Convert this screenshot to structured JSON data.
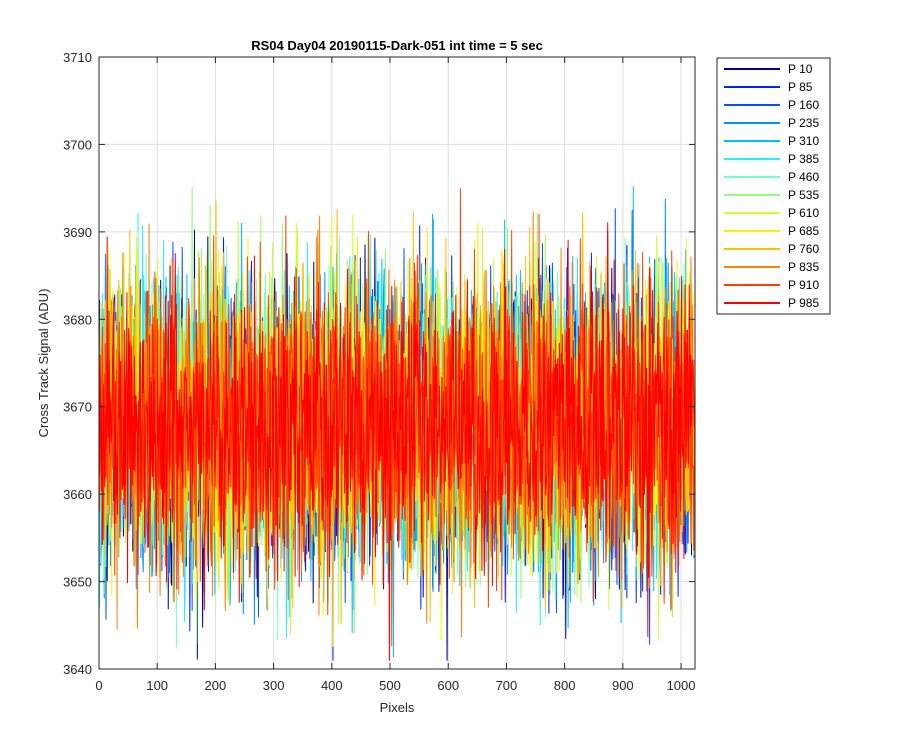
{
  "chart_data": {
    "type": "line",
    "title": "RS04 Day04 20190115-Dark-051 int time = 5 sec",
    "xlabel": "Pixels",
    "ylabel": "Cross Track Signal (ADU)",
    "xlim": [
      0,
      1024
    ],
    "ylim": [
      3640,
      3710
    ],
    "xticks": [
      0,
      100,
      200,
      300,
      400,
      500,
      600,
      700,
      800,
      900,
      1000
    ],
    "yticks": [
      3640,
      3650,
      3660,
      3670,
      3680,
      3690,
      3700,
      3710
    ],
    "grid": true,
    "legend_position": "outside-top-right",
    "noise_model": {
      "mean": 3668,
      "stddev_approx": 8,
      "n_points_per_series": 1024
    },
    "series": [
      {
        "name": "P 10",
        "color": "#00008f",
        "mean": 3668
      },
      {
        "name": "P 85",
        "color": "#0020ff",
        "mean": 3668
      },
      {
        "name": "P 160",
        "color": "#0050ff",
        "mean": 3668
      },
      {
        "name": "P 235",
        "color": "#0090ff",
        "mean": 3668
      },
      {
        "name": "P 310",
        "color": "#00bfff",
        "mean": 3668
      },
      {
        "name": "P 385",
        "color": "#20efff",
        "mean": 3668
      },
      {
        "name": "P 460",
        "color": "#70ffcf",
        "mean": 3668
      },
      {
        "name": "P 535",
        "color": "#8fff70",
        "mean": 3668
      },
      {
        "name": "P 610",
        "color": "#cfff30",
        "mean": 3668
      },
      {
        "name": "P 685",
        "color": "#ffef00",
        "mean": 3668
      },
      {
        "name": "P 760",
        "color": "#ffbf00",
        "mean": 3668
      },
      {
        "name": "P 835",
        "color": "#ff8000",
        "mean": 3668
      },
      {
        "name": "P 910",
        "color": "#ff4000",
        "mean": 3668
      },
      {
        "name": "P 985",
        "color": "#ff0000",
        "mean": 3668
      }
    ]
  }
}
